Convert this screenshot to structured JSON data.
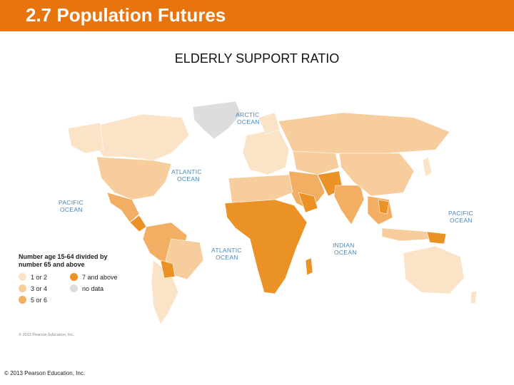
{
  "header": {
    "title": "2.7 Population Futures",
    "color": "#e8740e"
  },
  "map": {
    "title": "ELDERLY SUPPORT RATIO",
    "oceans": [
      "ARCTIC",
      "OCEAN",
      "ATLANTIC",
      "OCEAN",
      "PACIFIC",
      "OCEAN",
      "PACIFIC",
      "OCEAN",
      "ATLANTIC",
      "OCEAN",
      "INDIAN",
      "OCEAN"
    ],
    "legend": {
      "title": "Number age 15-64 divided by number 65 and above",
      "items": [
        {
          "label": "1 or 2",
          "color": "#fbe3c8"
        },
        {
          "label": "7 and above",
          "color": "#eb9226"
        },
        {
          "label": "3 or 4",
          "color": "#f7cd9e"
        },
        {
          "label": "no data",
          "color": "#dddddd"
        },
        {
          "label": "5 or 6",
          "color": "#f2ae62"
        }
      ]
    },
    "copyright": "© 2013 Pearson Education, Inc."
  },
  "footer": {
    "text": "© 2013 Pearson Education, Inc."
  }
}
